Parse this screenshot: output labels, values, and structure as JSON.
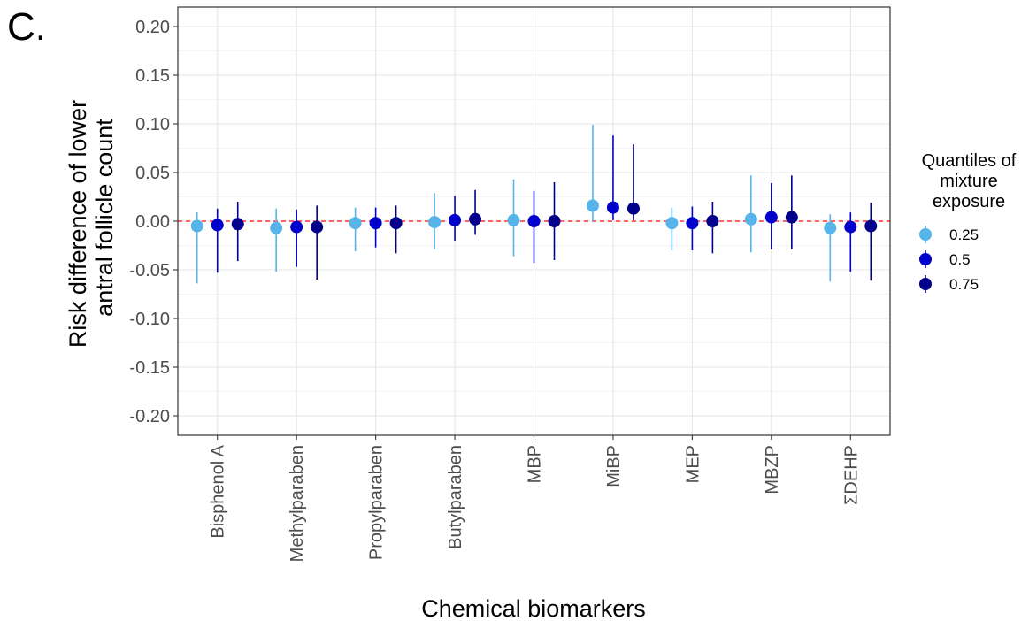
{
  "panel_label": "C.",
  "chart_data": {
    "type": "scatter",
    "subtype": "point-range (dodged)",
    "title": "",
    "xlabel": "Chemical biomarkers",
    "ylabel_lines": [
      "Risk difference of lower",
      "antral follicle count"
    ],
    "ylim": [
      -0.22,
      0.22
    ],
    "yticks": [
      0.2,
      0.15,
      0.1,
      0.05,
      0.0,
      -0.05,
      -0.1,
      -0.15,
      -0.2
    ],
    "ytick_labels": [
      "0.20",
      "0.15",
      "0.10",
      "0.05",
      "0.00",
      "-0.05",
      "-0.10",
      "-0.15",
      "-0.20"
    ],
    "categories": [
      "Bisphenol A",
      "Methylparaben",
      "Propylparaben",
      "Butylparaben",
      "MBP",
      "MiBP",
      "MEP",
      "MBZP",
      "ΣDEHP"
    ],
    "reference_line": 0.0,
    "grid": true,
    "legend": {
      "title_lines": [
        "Quantiles of",
        "mixture",
        "exposure"
      ],
      "placement": "right"
    },
    "series": [
      {
        "name": "0.25",
        "color": "#56b4e9",
        "values": [
          -0.005,
          -0.007,
          -0.002,
          -0.001,
          0.001,
          0.016,
          -0.002,
          0.002,
          -0.007
        ],
        "lower": [
          -0.064,
          -0.052,
          -0.031,
          -0.029,
          -0.036,
          -0.001,
          -0.03,
          -0.032,
          -0.062
        ],
        "upper": [
          0.009,
          0.013,
          0.014,
          0.029,
          0.043,
          0.099,
          0.014,
          0.047,
          0.007
        ]
      },
      {
        "name": "0.5",
        "color": "#0000cd",
        "values": [
          -0.004,
          -0.006,
          -0.002,
          0.001,
          0.0,
          0.014,
          -0.002,
          0.004,
          -0.006
        ],
        "lower": [
          -0.053,
          -0.047,
          -0.027,
          -0.02,
          -0.043,
          0.001,
          -0.03,
          -0.029,
          -0.052
        ],
        "upper": [
          0.013,
          0.012,
          0.014,
          0.026,
          0.031,
          0.088,
          0.015,
          0.039,
          0.009
        ]
      },
      {
        "name": "0.75",
        "color": "#00008b",
        "values": [
          -0.003,
          -0.006,
          -0.002,
          0.002,
          0.0,
          0.013,
          0.0,
          0.004,
          -0.005
        ],
        "lower": [
          -0.041,
          -0.06,
          -0.033,
          -0.014,
          -0.04,
          0.001,
          -0.033,
          -0.029,
          -0.061
        ],
        "upper": [
          0.02,
          0.016,
          0.016,
          0.032,
          0.04,
          0.079,
          0.02,
          0.047,
          0.019
        ]
      }
    ]
  }
}
